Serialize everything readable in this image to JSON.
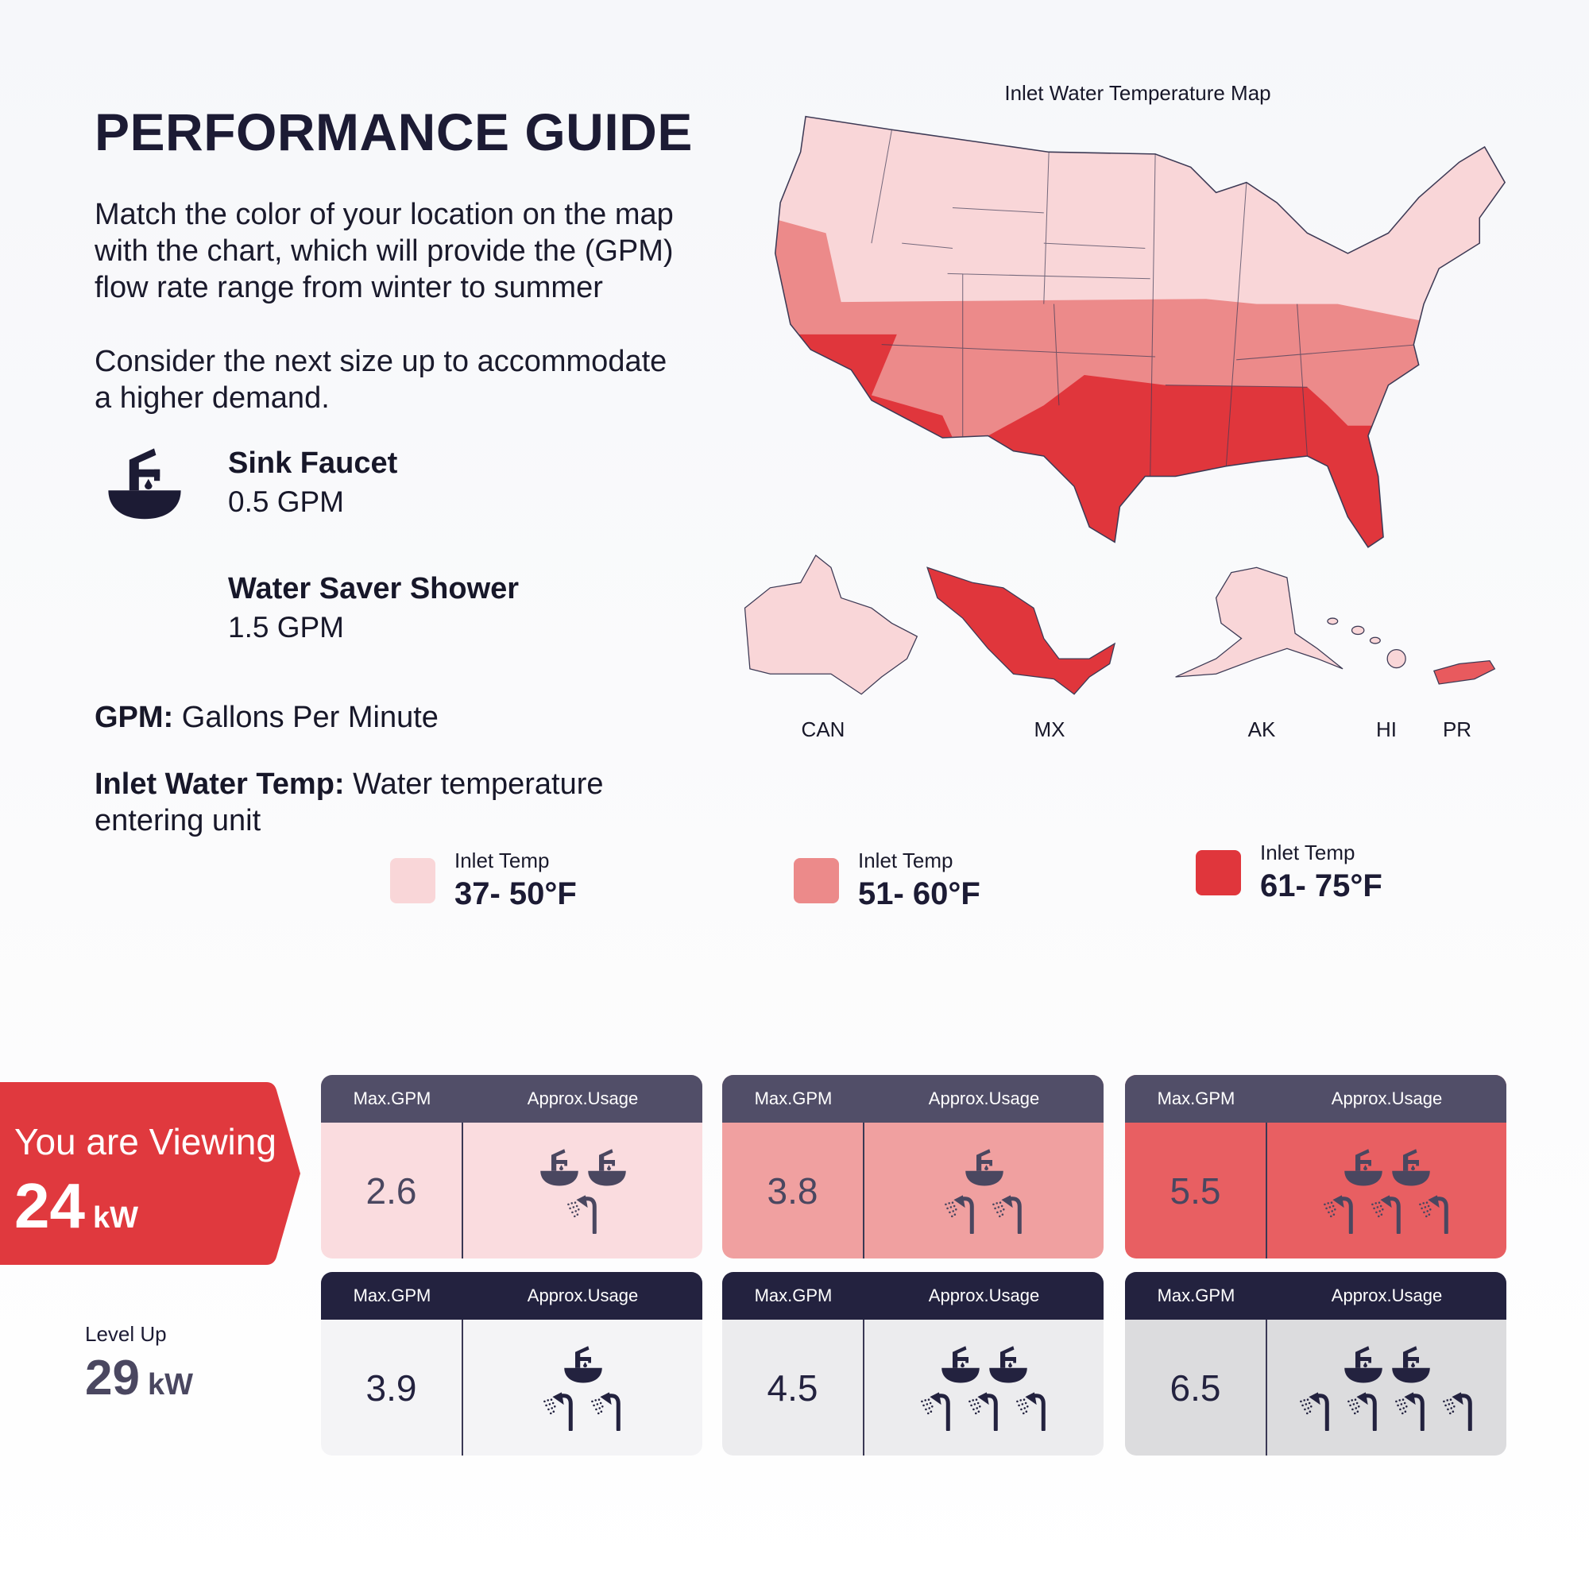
{
  "guide": {
    "title": "PERFORMANCE GUIDE",
    "intro_lines": [
      "Match the color of your location on the map",
      "with the chart, which will provide the (GPM)",
      "flow rate range from winter to summer"
    ],
    "consider_lines": [
      "Consider the next size up to accommodate",
      "a higher demand."
    ],
    "fixtures": [
      {
        "icon": "faucet-icon",
        "name": "Sink Faucet",
        "flow": "0.5 GPM"
      },
      {
        "name": "Water Saver Shower",
        "flow": "1.5 GPM"
      }
    ],
    "definitions": [
      {
        "term": "GPM:",
        "text": " Gallons Per Minute"
      },
      {
        "term": "Inlet Water Temp:",
        "text": " Water temperature entering unit"
      }
    ]
  },
  "map": {
    "title": "Inlet Water Temperature Map",
    "insets": [
      "CAN",
      "MX",
      "AK",
      "HI",
      "PR"
    ],
    "colors": {
      "cold": "#f9d6d8",
      "mild": "#ec8a8a",
      "warm": "#e0363c",
      "outline": "#3d3a55"
    }
  },
  "legend": [
    {
      "label": "Inlet Temp",
      "range": "37- 50°F",
      "color": "#f9d6d8"
    },
    {
      "label": "Inlet Temp",
      "range": "51- 60°F",
      "color": "#ec8a8a"
    },
    {
      "label": "Inlet Temp",
      "range": "61- 75°F",
      "color": "#e0363c"
    }
  ],
  "current": {
    "label": "You are Viewing",
    "value": "24",
    "unit": "kW",
    "color": "#e0393e"
  },
  "level_up": {
    "label": "Level Up",
    "value": "29",
    "unit": "kW"
  },
  "table_headers": {
    "max": "Max.GPM",
    "usage": "Approx.Usage"
  },
  "rows": [
    {
      "header_color": "#514e68",
      "icon_color": "#4a4760",
      "cards": [
        {
          "max_gpm": "2.6",
          "faucets": 2,
          "showers": 1,
          "bg": "#fadcdf"
        },
        {
          "max_gpm": "3.8",
          "faucets": 1,
          "showers": 2,
          "bg": "#f0a0a0"
        },
        {
          "max_gpm": "5.5",
          "faucets": 2,
          "showers": 3,
          "bg": "#e85f62"
        }
      ]
    },
    {
      "header_color": "#23223f",
      "icon_color": "#23223f",
      "cards": [
        {
          "max_gpm": "3.9",
          "faucets": 1,
          "showers": 2,
          "bg": "#f4f4f6"
        },
        {
          "max_gpm": "4.5",
          "faucets": 2,
          "showers": 3,
          "bg": "#ececee"
        },
        {
          "max_gpm": "6.5",
          "faucets": 2,
          "showers": 4,
          "bg": "#dcdcde"
        }
      ]
    }
  ]
}
